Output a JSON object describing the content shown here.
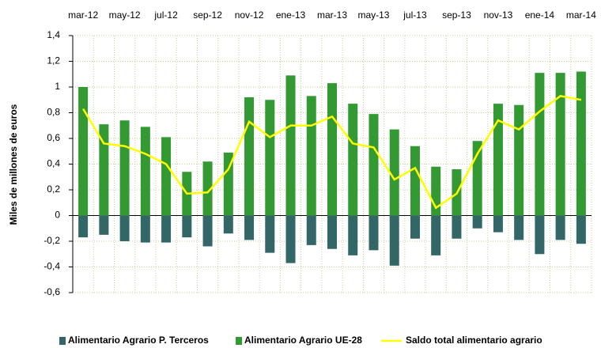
{
  "chart_data": {
    "type": "bar-line",
    "y_label": "Miles de millones de euros",
    "categories": [
      "mar-12",
      null,
      "may-12",
      null,
      "jul-12",
      null,
      "sep-12",
      null,
      "nov-12",
      null,
      "ene-13",
      null,
      "mar-13",
      null,
      "may-13",
      null,
      "jul-13",
      null,
      "sep-13",
      null,
      "nov-13",
      null,
      "ene-14",
      null,
      "mar-14"
    ],
    "series": [
      {
        "name": "Alimentario Agrario P. Terceros",
        "color": "#336666",
        "kind": "bar",
        "values": [
          -0.17,
          -0.15,
          -0.2,
          -0.21,
          -0.21,
          -0.17,
          -0.24,
          -0.14,
          -0.19,
          -0.29,
          -0.37,
          -0.23,
          -0.26,
          -0.31,
          -0.27,
          -0.39,
          -0.18,
          -0.31,
          -0.18,
          -0.1,
          -0.13,
          -0.19,
          -0.3,
          -0.19,
          -0.22
        ]
      },
      {
        "name": "Alimentario Agrario UE-28",
        "color": "#339933",
        "kind": "bar",
        "values": [
          1.0,
          0.71,
          0.74,
          0.69,
          0.61,
          0.34,
          0.42,
          0.49,
          0.92,
          0.9,
          1.09,
          0.93,
          1.03,
          0.87,
          0.79,
          0.67,
          0.54,
          0.38,
          0.36,
          0.58,
          0.87,
          0.86,
          1.11,
          1.11,
          1.12
        ]
      },
      {
        "name": "Saldo total alimentario agrario",
        "color": "#ffff00",
        "kind": "line",
        "values": [
          0.83,
          0.56,
          0.54,
          0.48,
          0.4,
          0.17,
          0.18,
          0.36,
          0.73,
          0.61,
          0.7,
          0.7,
          0.77,
          0.56,
          0.53,
          0.28,
          0.37,
          0.06,
          0.17,
          0.48,
          0.74,
          0.67,
          0.81,
          0.93,
          0.9
        ]
      }
    ],
    "ylim": [
      -0.6,
      1.4
    ],
    "yticks": [
      {
        "value": 1.4,
        "label": "1,4"
      },
      {
        "value": 1.2,
        "label": "1,2"
      },
      1,
      {
        "value": 0.8,
        "label": "0,8"
      },
      {
        "value": 0.6,
        "label": "0,6"
      },
      {
        "value": 0.4,
        "label": "0,4"
      },
      {
        "value": 0.2,
        "label": "0,2"
      },
      0,
      {
        "value": -0.2,
        "label": "-0,2"
      },
      {
        "value": -0.4,
        "label": "-0,4"
      },
      {
        "value": -0.6,
        "label": "-0,6"
      }
    ],
    "grid": true,
    "legend": "bottom"
  }
}
